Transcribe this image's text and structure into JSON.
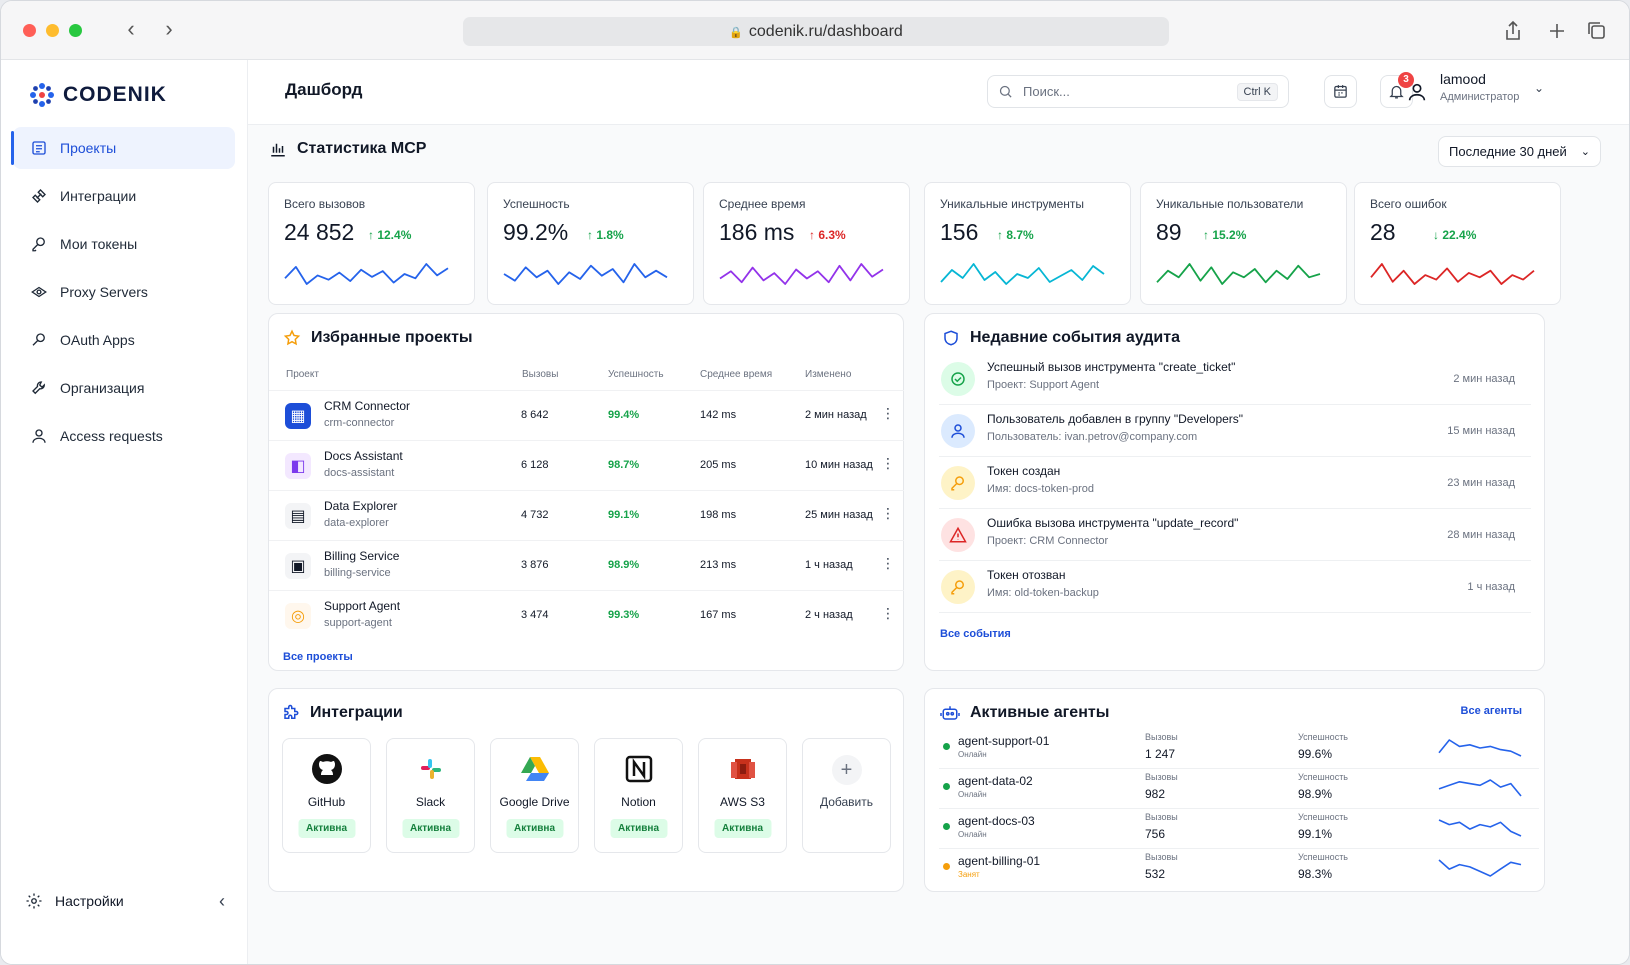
{
  "browser": {
    "url": "codenik.ru/dashboard"
  },
  "brand": {
    "name": "CODENIK"
  },
  "sidebar": {
    "items": [
      {
        "label": "Проекты",
        "icon": "projects-icon"
      },
      {
        "label": "Интеграции",
        "icon": "integrations-icon"
      },
      {
        "label": "Мои токены",
        "icon": "key-icon"
      },
      {
        "label": "Proxy Servers",
        "icon": "proxy-icon"
      },
      {
        "label": "OAuth Apps",
        "icon": "oauth-key-icon"
      },
      {
        "label": "Организация",
        "icon": "wrench-icon"
      },
      {
        "label": "Access requests",
        "icon": "user-icon"
      }
    ],
    "settings": "Настройки"
  },
  "header": {
    "title": "Дашборд",
    "search_placeholder": "Поиск...",
    "search_shortcut": "Ctrl K",
    "notifications": "3",
    "user_name": "lamood",
    "user_role": "Администратор"
  },
  "stats": {
    "title": "Статистика MCP",
    "range": "Последние 30 дней",
    "cards": [
      {
        "label": "Всего вызовов",
        "value": "24 852",
        "change": "↑ 12.4%",
        "color": "#2563eb",
        "trend": [
          12,
          20,
          8,
          14,
          11,
          16,
          10,
          18,
          13,
          17,
          9,
          15,
          12,
          22,
          14,
          19
        ]
      },
      {
        "label": "Успешность",
        "value": "99.2%",
        "change": "↑ 1.8%",
        "color": "#2563eb",
        "trend": [
          14,
          10,
          18,
          12,
          16,
          8,
          15,
          11,
          19,
          13,
          17,
          9,
          20,
          12,
          16,
          12
        ]
      },
      {
        "label": "Среднее время",
        "value": "186 ms",
        "change": "↑ 6.3%",
        "color": "#9333ea",
        "trend": [
          12,
          16,
          10,
          18,
          11,
          15,
          9,
          17,
          12,
          16,
          10,
          19,
          11,
          20,
          13,
          17
        ]
      },
      {
        "label": "Уникальные инструменты",
        "value": "156",
        "change": "↑ 8.7%",
        "color": "#06b6d4",
        "trend": [
          10,
          16,
          12,
          19,
          11,
          15,
          9,
          14,
          12,
          17,
          10,
          13,
          16,
          11,
          18,
          14
        ]
      },
      {
        "label": "Уникальные пользователи",
        "value": "89",
        "change": "↑ 15.2%",
        "color": "#16a34a",
        "trend": [
          9,
          16,
          12,
          20,
          10,
          18,
          8,
          15,
          12,
          17,
          9,
          16,
          11,
          19,
          12,
          14
        ]
      },
      {
        "label": "Всего ошибок",
        "value": "28",
        "change": "↓ 22.4%",
        "color": "#dc2626",
        "trend": [
          12,
          18,
          10,
          15,
          9,
          13,
          11,
          16,
          10,
          14,
          12,
          15,
          9,
          13,
          11,
          15
        ]
      }
    ]
  },
  "projects": {
    "title": "Избранные проекты",
    "columns": [
      "Проект",
      "Вызовы",
      "Успешность",
      "Среднее время",
      "Изменено"
    ],
    "rows": [
      {
        "name": "CRM Connector",
        "slug": "crm-connector",
        "calls": "8 642",
        "success": "99.4%",
        "time": "142 ms",
        "changed": "2 мин назад"
      },
      {
        "name": "Docs Assistant",
        "slug": "docs-assistant",
        "calls": "6 128",
        "success": "98.7%",
        "time": "205 ms",
        "changed": "10 мин назад"
      },
      {
        "name": "Data Explorer",
        "slug": "data-explorer",
        "calls": "4 732",
        "success": "99.1%",
        "time": "198 ms",
        "changed": "25 мин назад"
      },
      {
        "name": "Billing Service",
        "slug": "billing-service",
        "calls": "3 876",
        "success": "98.9%",
        "time": "213 ms",
        "changed": "1 ч назад"
      },
      {
        "name": "Support Agent",
        "slug": "support-agent",
        "calls": "3 474",
        "success": "99.3%",
        "time": "167 ms",
        "changed": "2 ч назад"
      }
    ],
    "all_link": "Все проекты"
  },
  "audit": {
    "title": "Недавние события аудита",
    "items": [
      {
        "title": "Успешный вызов инструмента \"create_ticket\"",
        "sub": "Проект: Support Agent",
        "time": "2 мин назад"
      },
      {
        "title": "Пользователь добавлен в группу \"Developers\"",
        "sub": "Пользователь: ivan.petrov@company.com",
        "time": "15 мин назад"
      },
      {
        "title": "Токен создан",
        "sub": "Имя: docs-token-prod",
        "time": "23 мин назад"
      },
      {
        "title": "Ошибка вызова инструмента \"update_record\"",
        "sub": "Проект: CRM Connector",
        "time": "28 мин назад"
      },
      {
        "title": "Токен отозван",
        "sub": "Имя: old-token-backup",
        "time": "1 ч назад"
      }
    ],
    "all_link": "Все события"
  },
  "integrations": {
    "title": "Интеграции",
    "items": [
      {
        "name": "GitHub",
        "status": "Активна"
      },
      {
        "name": "Slack",
        "status": "Активна"
      },
      {
        "name": "Google Drive",
        "status": "Активна"
      },
      {
        "name": "Notion",
        "status": "Активна"
      },
      {
        "name": "AWS S3",
        "status": "Активна"
      }
    ],
    "add_label": "Добавить"
  },
  "agents": {
    "title": "Активные агенты",
    "all_link": "Все агенты",
    "calls_label": "Вызовы",
    "success_label": "Успешность",
    "items": [
      {
        "name": "agent-support-01",
        "status": "Онлайн",
        "status_color": "#16a34a",
        "calls": "1 247",
        "success": "99.6%",
        "trend": [
          4,
          12,
          8,
          9,
          7,
          8,
          6,
          5,
          2
        ]
      },
      {
        "name": "agent-data-02",
        "status": "Онлайн",
        "status_color": "#16a34a",
        "calls": "982",
        "success": "98.9%",
        "trend": [
          6,
          8,
          10,
          9,
          8,
          11,
          7,
          9,
          2
        ]
      },
      {
        "name": "agent-docs-03",
        "status": "Онлайн",
        "status_color": "#16a34a",
        "calls": "756",
        "success": "99.1%",
        "trend": [
          10,
          8,
          9,
          6,
          8,
          7,
          9,
          5,
          3
        ]
      },
      {
        "name": "agent-billing-01",
        "status": "Занят",
        "status_color": "#f59e0b",
        "calls": "532",
        "success": "98.3%",
        "trend": [
          10,
          6,
          8,
          7,
          5,
          3,
          6,
          9,
          8
        ]
      }
    ]
  }
}
